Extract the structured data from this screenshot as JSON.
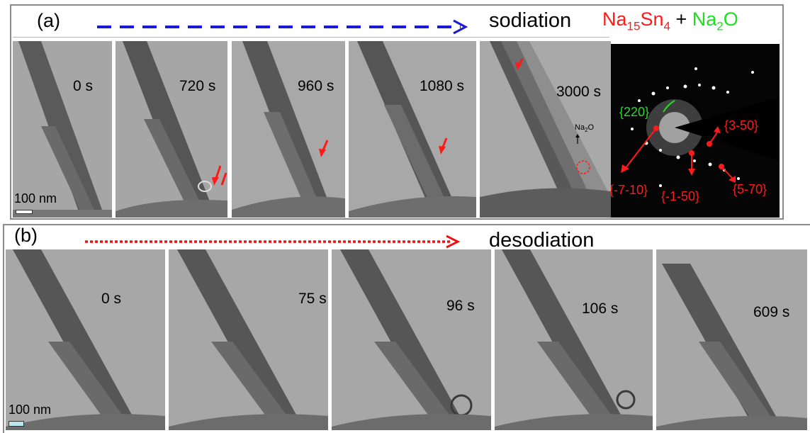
{
  "panel_a": {
    "label": "(a)",
    "process": "sodiation",
    "formula": {
      "part1": "Na",
      "sub1": "15",
      "part2": "Sn",
      "sub2": "4",
      "plus": "+",
      "part3": "Na",
      "sub3": "2",
      "part4": "O"
    },
    "frames": [
      {
        "time": "0 s"
      },
      {
        "time": "720 s"
      },
      {
        "time": "960 s"
      },
      {
        "time": "1080 s"
      },
      {
        "time": "3000 s"
      }
    ],
    "scale_bar": "100 nm",
    "na2o_label": {
      "main": "Na",
      "sub": "2",
      "end": "O"
    },
    "saed": {
      "reflections": [
        "{220}",
        "{3-50}",
        "{-7-10}",
        "{-1-50}",
        "{5-70}"
      ]
    },
    "colors": {
      "arrow": "#1a1ad6",
      "red": "#ff1a1a",
      "green": "#22dd22"
    }
  },
  "panel_b": {
    "label": "(b)",
    "process": "desodiation",
    "frames": [
      {
        "time": "0 s"
      },
      {
        "time": "75 s"
      },
      {
        "time": "96 s"
      },
      {
        "time": "106 s"
      },
      {
        "time": "609 s"
      }
    ],
    "scale_bar": "100 nm",
    "colors": {
      "arrow": "#ee1111"
    }
  }
}
